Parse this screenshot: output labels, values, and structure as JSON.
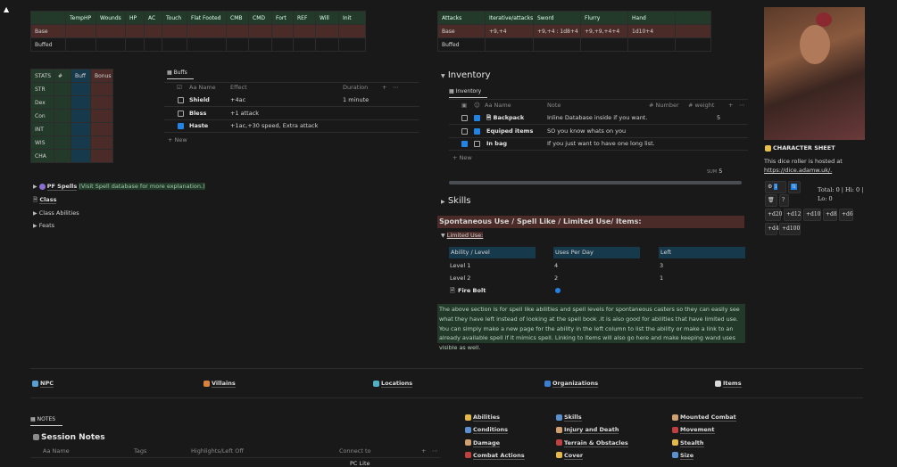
{
  "combat_table": {
    "headers": [
      "",
      "TempHP",
      "Wounds",
      "HP",
      "AC",
      "Touch",
      "Flat Footed",
      "CMB",
      "CMD",
      "Fort",
      "REF",
      "Will",
      "Init"
    ],
    "rows": [
      "Base",
      "Buffed"
    ]
  },
  "stats_table": {
    "headers": [
      "STATS",
      "#",
      "Buff",
      "Bonus"
    ],
    "rows": [
      "STR",
      "Dex",
      "Con",
      "INT",
      "WIS",
      "CHA"
    ]
  },
  "buffs": {
    "tab": "Buffs",
    "headers": {
      "name": "Aa Name",
      "effect": "Effect",
      "duration": "Duration"
    },
    "rows": [
      {
        "name": "Shield",
        "effect": "+4ac",
        "duration": "1 minute",
        "checked": false
      },
      {
        "name": "Bless",
        "effect": "+1 attack",
        "duration": "",
        "checked": false
      },
      {
        "name": "Haste",
        "effect": "+1ac,+30 speed, Extra attack",
        "duration": "",
        "checked": true
      }
    ],
    "new": "+ New"
  },
  "attacks_table": {
    "headers": [
      "Attacks",
      "Iterative/attacks",
      "Sword",
      "Flurry",
      "Hand",
      ""
    ],
    "rows": [
      [
        "Base",
        "+9,+4",
        "+9,+4 : 1d8+4",
        "+9,+9,+4+4",
        "1d10+4",
        ""
      ],
      [
        "Buffed",
        "",
        "",
        "",
        "",
        ""
      ]
    ]
  },
  "inventory": {
    "heading": "Inventory",
    "tab": "Inventory",
    "headers": {
      "name": "Aa Name",
      "note": "Note",
      "number": "# Number",
      "weight": "# weight"
    },
    "rows": [
      {
        "name": "Backpack",
        "note": "Inline Database inside if you want.",
        "weight": "5",
        "c1": false,
        "c2": true
      },
      {
        "name": "Equiped items",
        "note": "SO you know whats on you",
        "weight": "",
        "c1": false,
        "c2": true
      },
      {
        "name": "In bag",
        "note": "If you just want to have one long list.",
        "weight": "",
        "c1": true,
        "c2": false
      }
    ],
    "new": "+ New",
    "sum_label": "SUM",
    "sum": "5"
  },
  "left_toggles": {
    "pf_spells": "PF Spells",
    "pf_note": "(Visit Spell database for more explanation.)",
    "class": "Class",
    "class_abilities": "Class Abilities",
    "feats": "Feats"
  },
  "skills": "Skills",
  "spontaneous": "Spontaneous Use / Spell Like / Limited Use/ Items:",
  "limited_use": "Limited Use:",
  "limited_table": {
    "headers": [
      "Ability / Level",
      "Uses Per Day",
      "Left"
    ],
    "rows": [
      [
        "Level 1",
        "4",
        "3"
      ],
      [
        "Level 2",
        "2",
        "1"
      ],
      [
        "Fire Bolt",
        "",
        ""
      ]
    ]
  },
  "note_paragraph": "The above section is for spell like abilities and spell levels for spontaneous casters so they can easily see what they have left instead of looking at the spell book .It is also good for abilities that have limited use. You can simply make a new page for the ability in the left column to list the ability or make a link to an already available spell if it mimics spell. Linking to items will also go here and make keeping wand uses visible as well.",
  "sidebar": {
    "title": "CHARACTER SHEET",
    "text1": "This dice roller is hosted at",
    "link": "https://dice.adamw.uk/.",
    "total": "Total: 0 | Hi: 0 |",
    "lo": "Lo: 0",
    "help": "?",
    "dice": [
      "+d20",
      "+d12",
      "+d10",
      "+d8",
      "+d6",
      "+d4",
      "+d100"
    ]
  },
  "links": [
    "NPC",
    "Villains",
    "Locations",
    "Organizations",
    "Items"
  ],
  "notes": {
    "tab": "NOTES",
    "title": "Session Notes",
    "headers": [
      "Aa Name",
      "Tags",
      "Highlights/Left Off",
      "Connect to"
    ],
    "first_connect": "PC Lite"
  },
  "rules": [
    [
      "Abilities",
      "Conditions",
      "Damage",
      "Combat Actions"
    ],
    [
      "Skills",
      "Injury and Death",
      "Terrain & Obstacles",
      "Cover"
    ],
    [
      "Mounted Combat",
      "Movement",
      "Stealth",
      "Size"
    ]
  ],
  "colors": {
    "green": "#233a2b",
    "red": "#4a2b27",
    "blue": "#17394c",
    "accent": "#2383e2"
  }
}
